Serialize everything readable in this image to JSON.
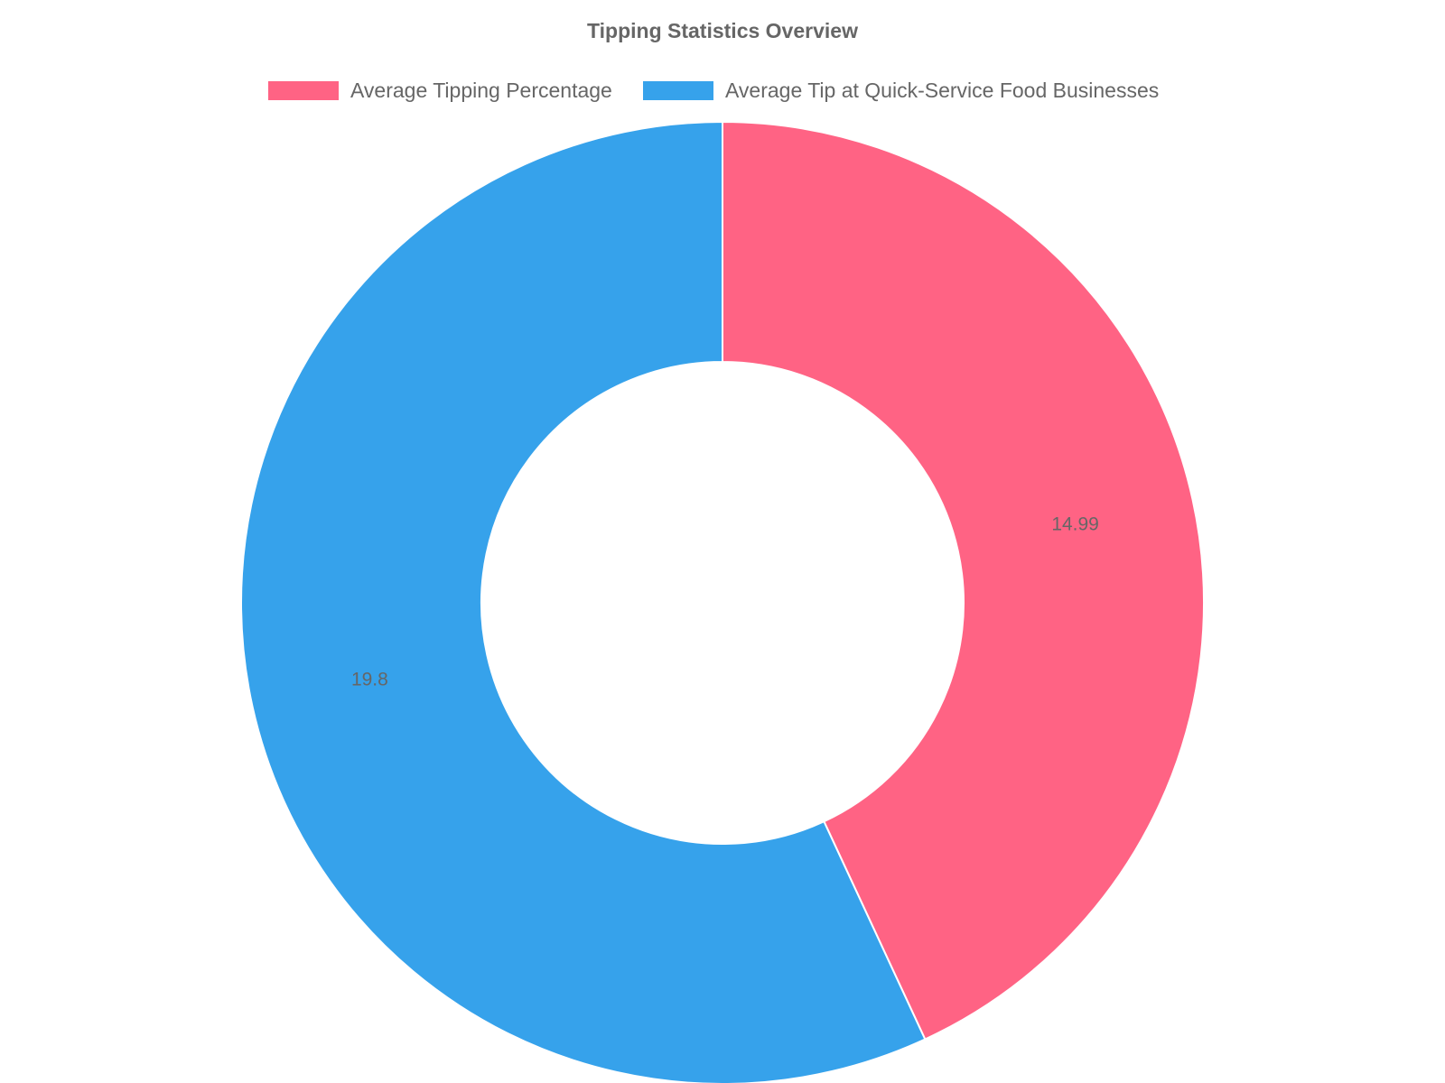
{
  "chart_data": {
    "type": "pie",
    "title": "Tipping Statistics Overview",
    "labels": [
      "Average Tipping Percentage",
      "Average Tip at Quick-Service Food Businesses"
    ],
    "values": [
      14.99,
      19.8
    ],
    "colors": [
      "#ff6384",
      "#36a2eb"
    ],
    "legend_position": "top",
    "doughnut": true
  }
}
